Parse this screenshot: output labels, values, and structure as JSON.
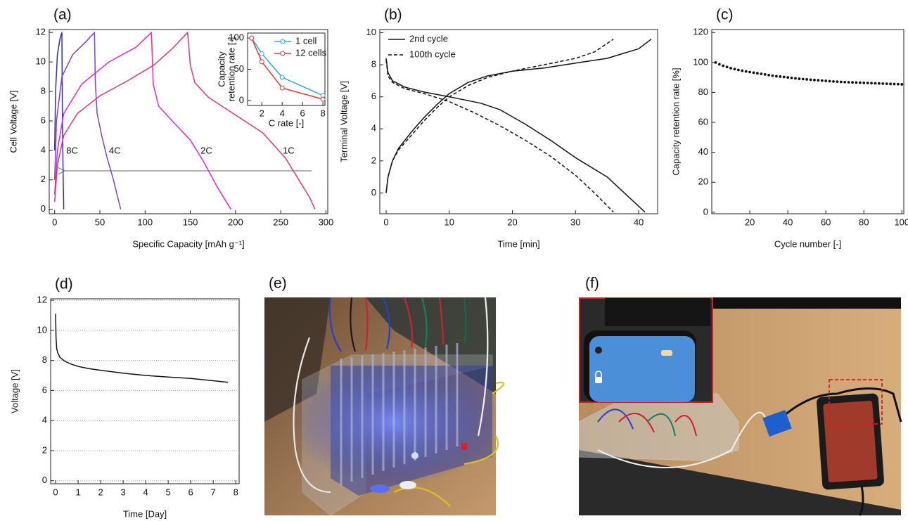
{
  "chart_data": [
    {
      "type": "line",
      "panel": "(a)",
      "xlabel": "Specific Capacity [mAh g⁻¹]",
      "ylabel": "Cell Voltage [V]",
      "xlim": [
        -6,
        302
      ],
      "ylim": [
        -0.3,
        12.2
      ],
      "xticks": [
        0,
        50,
        100,
        150,
        200,
        250,
        300
      ],
      "yticks": [
        0,
        2,
        4,
        6,
        8,
        10,
        12
      ],
      "name_labels": true,
      "series": [
        {
          "name": "8C",
          "color": "#2b2bd9",
          "x": [
            0,
            1,
            3,
            6,
            8,
            8.5,
            9,
            9.5,
            10
          ],
          "values": [
            4,
            8,
            10.5,
            11.6,
            12,
            7,
            4,
            2,
            0
          ]
        },
        {
          "name": "4C",
          "color": "#7b3fe4",
          "x": [
            0,
            2,
            8,
            20,
            35,
            44,
            45,
            47,
            52,
            58,
            65,
            73
          ],
          "values": [
            2,
            6,
            9,
            10.5,
            11.4,
            12,
            8.5,
            6.5,
            5,
            3.5,
            2,
            0
          ]
        },
        {
          "name": "2C",
          "color": "#e326d8",
          "x": [
            0,
            3,
            10,
            30,
            60,
            90,
            107,
            109,
            115,
            130,
            150,
            165,
            180,
            195
          ],
          "values": [
            1,
            4,
            6.5,
            8.5,
            10,
            11,
            12,
            8.5,
            7,
            6,
            4.7,
            3.2,
            1.5,
            0
          ]
        },
        {
          "name": "1C",
          "color": "#e8356f",
          "x": [
            0,
            3,
            10,
            25,
            50,
            80,
            110,
            130,
            147,
            150,
            155,
            170,
            200,
            230,
            255,
            270,
            282,
            288
          ],
          "values": [
            0.5,
            3,
            5,
            6.5,
            7.7,
            8.7,
            9.8,
            10.9,
            12,
            9.8,
            8.6,
            7.6,
            6.4,
            5.2,
            3.5,
            2,
            0.8,
            0
          ]
        }
      ],
      "inset": {
        "type": "line",
        "xlabel": "C rate [-]",
        "ylabel": [
          "Capacity",
          "retention rate [-]"
        ],
        "xlim": [
          0.6,
          8.2
        ],
        "ylim": [
          -8,
          108
        ],
        "xticks": [
          2,
          4,
          6,
          8
        ],
        "yticks": [
          0,
          50,
          100
        ],
        "markers": "open-circle",
        "legend": "upper right",
        "x": [
          1,
          2,
          4,
          8
        ],
        "series": [
          {
            "name": "1 cell",
            "color": "#2fa8e0",
            "values": [
              100,
              75,
              37,
              8
            ]
          },
          {
            "name": "12 cells",
            "color": "#e53935",
            "values": [
              100,
              62,
              20,
              2
            ]
          }
        ]
      }
    },
    {
      "type": "line",
      "panel": "(b)",
      "xlabel": "Time [min]",
      "ylabel": "Terminal Voltage [V]",
      "xlim": [
        -1,
        43
      ],
      "ylim": [
        -1.3,
        10.2
      ],
      "xticks": [
        0,
        10,
        20,
        30,
        40
      ],
      "yticks": [
        0,
        2,
        4,
        6,
        8,
        10
      ],
      "legend": "upper left",
      "series": [
        {
          "name": "2nd cycle",
          "color": "#111111",
          "dash": "solid",
          "x": [
            0,
            0.3,
            1,
            2,
            4,
            6,
            8,
            10,
            13,
            16,
            20,
            25,
            30,
            35,
            40,
            42,
            null,
            0,
            0.3,
            1,
            3,
            6,
            10,
            15,
            18,
            22,
            26,
            30,
            35,
            41
          ],
          "values": [
            0,
            1,
            2,
            2.8,
            3.8,
            4.7,
            5.5,
            6.2,
            6.9,
            7.3,
            7.6,
            7.8,
            8.1,
            8.4,
            9,
            9.6,
            null,
            8.4,
            7.5,
            7,
            6.6,
            6.3,
            6,
            5.6,
            5.2,
            4.3,
            3.3,
            2.2,
            1,
            -1.2
          ]
        },
        {
          "name": "100th cycle",
          "color": "#111111",
          "dash": "dashed",
          "x": [
            0,
            0.3,
            1,
            2,
            4,
            6,
            8,
            10,
            13,
            16,
            20,
            25,
            30,
            33,
            36,
            null,
            0,
            0.3,
            1,
            3,
            6,
            10,
            14,
            18,
            22,
            26,
            30,
            33,
            36
          ],
          "values": [
            0,
            1,
            2,
            2.7,
            3.6,
            4.5,
            5.3,
            6,
            6.7,
            7.2,
            7.6,
            8,
            8.4,
            8.8,
            9.6,
            null,
            8.3,
            7.3,
            6.9,
            6.5,
            6.2,
            5.7,
            5,
            4.2,
            3.3,
            2.3,
            1.1,
            0,
            -1.2
          ]
        }
      ]
    },
    {
      "type": "scatter",
      "panel": "(c)",
      "xlabel": "Cycle number [-]",
      "ylabel": "Capacity retention rate [%]",
      "xlim": [
        0,
        101
      ],
      "ylim": [
        -1,
        122
      ],
      "xticks": [
        20,
        40,
        60,
        80,
        100
      ],
      "yticks": [
        0,
        20,
        40,
        60,
        80,
        100,
        120
      ],
      "color": "#111111",
      "x": [
        2,
        4,
        6,
        8,
        10,
        12,
        14,
        16,
        18,
        20,
        22,
        24,
        26,
        28,
        30,
        32,
        34,
        36,
        38,
        40,
        42,
        44,
        46,
        48,
        50,
        52,
        54,
        56,
        58,
        60,
        62,
        64,
        66,
        68,
        70,
        72,
        74,
        76,
        78,
        80,
        82,
        84,
        86,
        88,
        90,
        92,
        94,
        96,
        98,
        100
      ],
      "values": [
        100,
        98.8,
        97.8,
        97,
        96.2,
        95.6,
        95,
        94.5,
        94,
        93.6,
        93.2,
        92.8,
        92.4,
        92,
        91.6,
        91.2,
        90.8,
        90.6,
        90.3,
        90,
        89.7,
        89.4,
        89.1,
        88.9,
        88.7,
        88.5,
        88.3,
        88.1,
        87.9,
        87.7,
        87.5,
        87.3,
        87.2,
        87,
        86.9,
        86.8,
        86.7,
        86.6,
        86.5,
        86.4,
        86.3,
        86.2,
        86.1,
        86,
        85.9,
        85.8,
        85.7,
        85.6,
        85.5,
        85.4
      ]
    },
    {
      "type": "line",
      "panel": "(d)",
      "xlabel": "Time [Day]",
      "ylabel": "Voltage [V]",
      "xlim": [
        -0.22,
        8.15
      ],
      "ylim": [
        -0.2,
        12.1
      ],
      "xticks": [
        0,
        1,
        2,
        3,
        4,
        5,
        6,
        7,
        8
      ],
      "yticks": [
        0,
        2,
        4,
        6,
        8,
        10,
        12
      ],
      "grid": true,
      "series": [
        {
          "color": "#111111",
          "x": [
            0,
            0.02,
            0.05,
            0.1,
            0.2,
            0.4,
            0.7,
            1,
            1.5,
            2,
            3,
            4,
            5,
            6,
            7,
            7.65
          ],
          "values": [
            11.1,
            9.5,
            8.8,
            8.5,
            8.2,
            7.95,
            7.75,
            7.6,
            7.45,
            7.35,
            7.15,
            7,
            6.9,
            6.8,
            6.65,
            6.55
          ]
        }
      ]
    }
  ],
  "photos": [
    {
      "label": "(e)"
    },
    {
      "label": "(f)"
    }
  ]
}
